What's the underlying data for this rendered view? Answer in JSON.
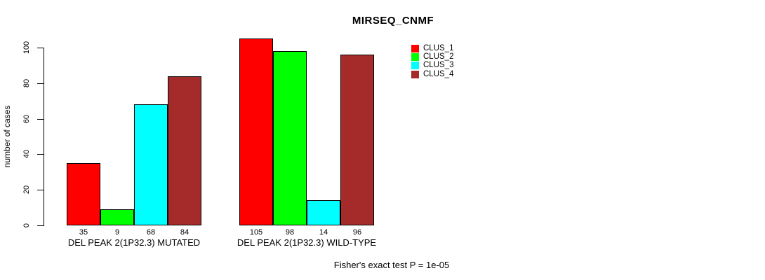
{
  "chart_data": {
    "type": "bar",
    "title": "MIRSEQ_CNMF",
    "xlabel": "",
    "ylabel": "number of cases",
    "categories": [
      "DEL PEAK 2(1P32.3) MUTATED",
      "DEL PEAK 2(1P32.3) WILD-TYPE"
    ],
    "series": [
      {
        "name": "CLUS_1",
        "color": "#FF0000",
        "values": [
          35,
          105
        ]
      },
      {
        "name": "CLUS_2",
        "color": "#00FF00",
        "values": [
          9,
          98
        ]
      },
      {
        "name": "CLUS_3",
        "color": "#00FFFF",
        "values": [
          68,
          14
        ]
      },
      {
        "name": "CLUS_4",
        "color": "#A52A2A",
        "values": [
          84,
          96
        ]
      }
    ],
    "bar_value_labels": [
      [
        35,
        9,
        68,
        84
      ],
      [
        105,
        98,
        14,
        96
      ]
    ],
    "yticks": [
      0,
      20,
      40,
      60,
      80,
      100
    ],
    "ylim": [
      0,
      105
    ],
    "grid": false,
    "legend_position": "right-of-plot",
    "bar_border_color": "#000000",
    "annotation": "Fisher's exact test P = 1e-05"
  }
}
